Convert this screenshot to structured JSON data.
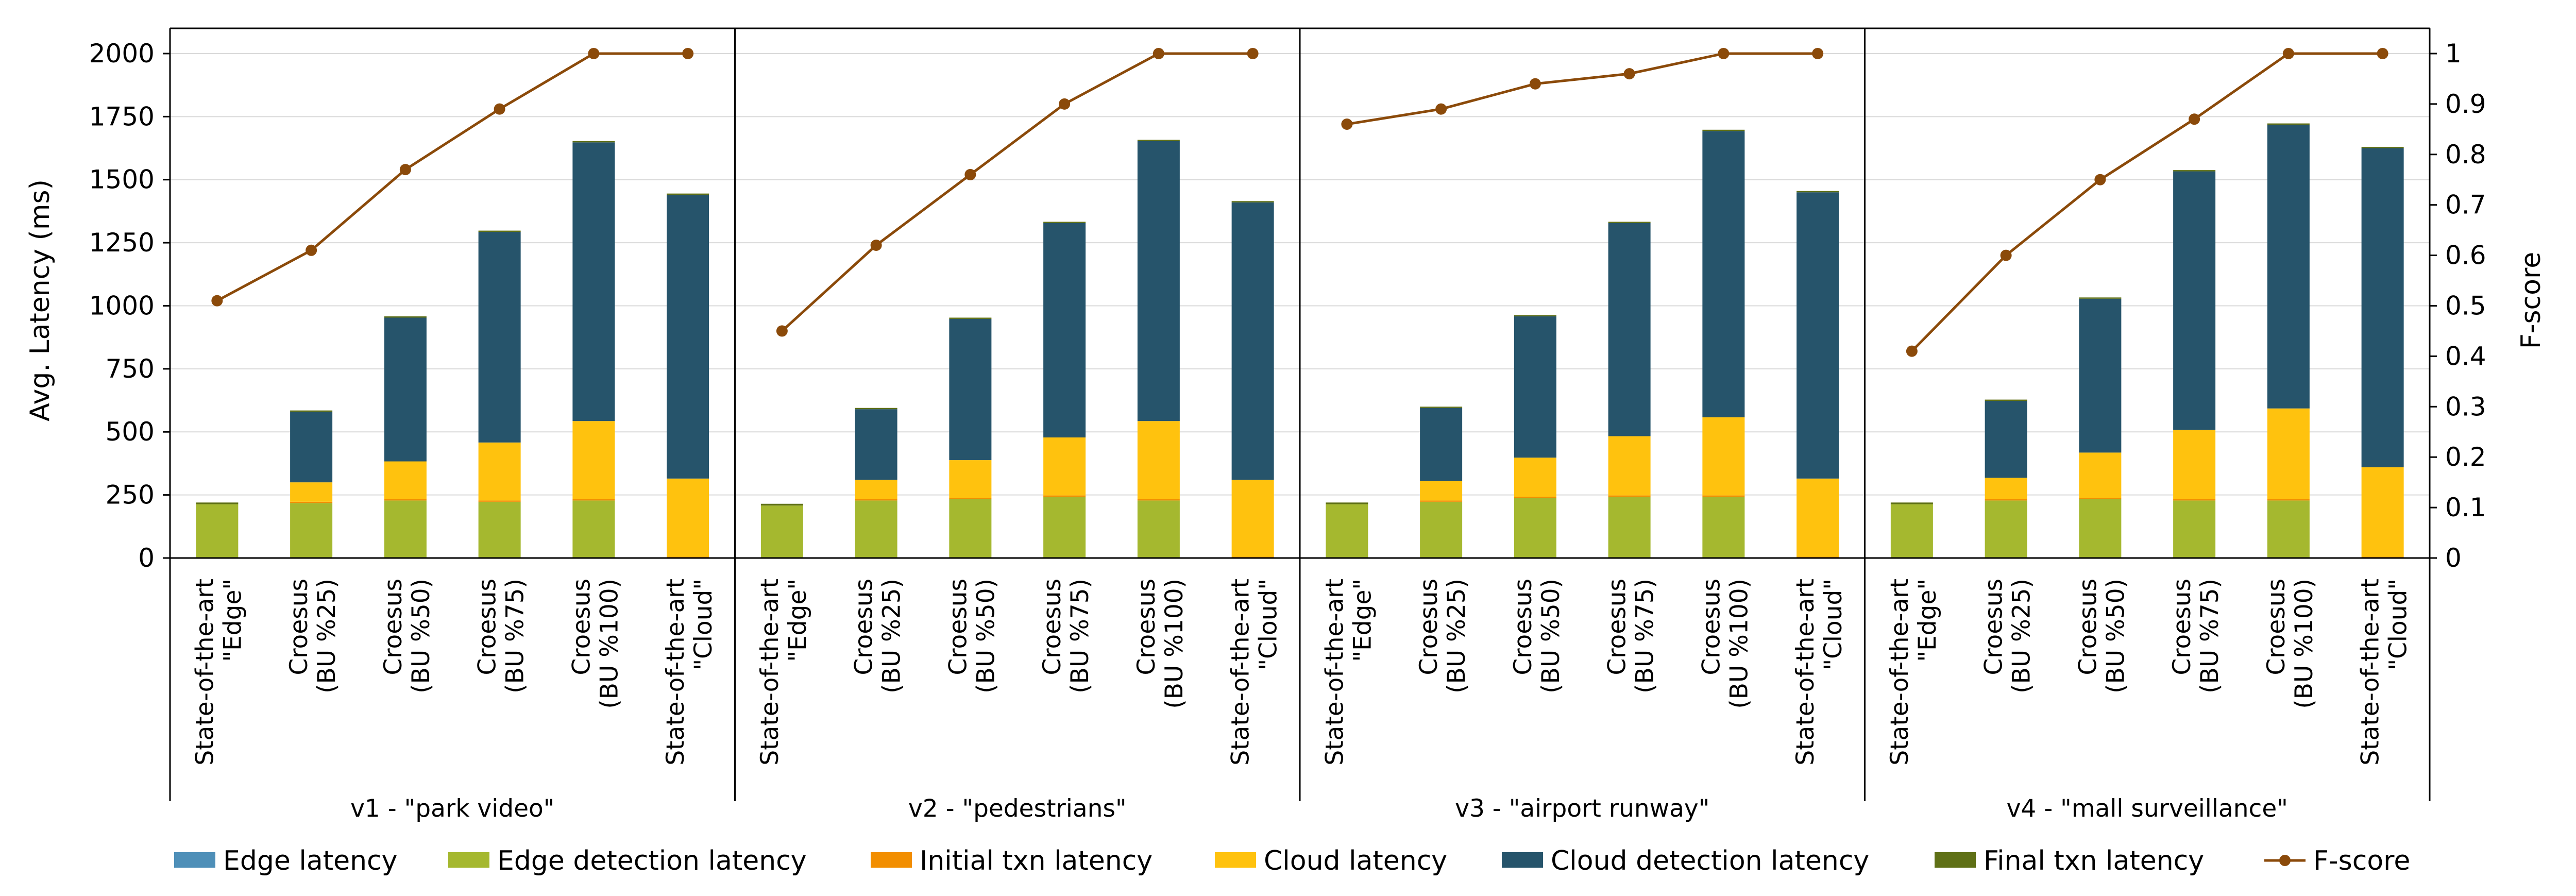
{
  "chart_data": {
    "type": "bar",
    "stacked": true,
    "secondary_line": "F-score",
    "ylabel": "Avg. Latency (ms)",
    "y2label": "F-score",
    "ylim": [
      0,
      2100
    ],
    "y2lim": [
      0,
      1.0
    ],
    "yticks": [
      "0",
      "250",
      "500",
      "750",
      "1000",
      "1250",
      "1500",
      "1750",
      "2000"
    ],
    "y2ticks": [
      "0",
      "0.1",
      "0.2",
      "0.3",
      "0.4",
      "0.5",
      "0.6",
      "0.7",
      "0.8",
      "0.9",
      "1"
    ],
    "legend_position": "bottom",
    "colors": {
      "Edge latency": "#4e8fb8",
      "Edge detection latency": "#a5b82f",
      "Initial txn latency": "#f28e00",
      "Cloud latency": "#ffc20e",
      "Cloud detection latency": "#26546b",
      "Final txn latency": "#5f7016",
      "F-score": "#8b4a0a"
    },
    "legend": [
      "Edge latency",
      "Edge detection latency",
      "Initial txn latency",
      "Cloud latency",
      "Cloud detection latency",
      "Final txn latency",
      "F-score"
    ],
    "groups": [
      {
        "name": "v1 - \"park video\"",
        "categories": [
          [
            "State-of-the-art",
            "\"Edge\""
          ],
          [
            "Croesus",
            "(BU %25)"
          ],
          [
            "Croesus",
            "(BU %50)"
          ],
          [
            "Croesus",
            "(BU %75)"
          ],
          [
            "Croesus",
            "(BU %100)"
          ],
          [
            "State-of-the-art",
            "\"Cloud\""
          ]
        ],
        "series": [
          {
            "name": "Edge latency",
            "values": [
              3,
              3,
              3,
              3,
              3,
              0
            ]
          },
          {
            "name": "Edge detection latency",
            "values": [
              210,
              215,
              225,
              220,
              225,
              0
            ]
          },
          {
            "name": "Initial txn latency",
            "values": [
              0,
              5,
              5,
              5,
              5,
              5
            ]
          },
          {
            "name": "Cloud latency",
            "values": [
              0,
              77,
              150,
              230,
              310,
              310
            ]
          },
          {
            "name": "Cloud detection latency",
            "values": [
              0,
              280,
              570,
              835,
              1105,
              1125
            ]
          },
          {
            "name": "Final txn latency",
            "values": [
              7,
              5,
              5,
              5,
              5,
              5
            ]
          }
        ],
        "fscore": [
          0.51,
          0.61,
          0.77,
          0.89,
          1.0,
          1.0
        ]
      },
      {
        "name": "v2 - \"pedestrians\"",
        "categories": [
          [
            "State-of-the-art",
            "\"Edge\""
          ],
          [
            "Croesus",
            "(BU %25)"
          ],
          [
            "Croesus",
            "(BU %50)"
          ],
          [
            "Croesus",
            "(BU %75)"
          ],
          [
            "Croesus",
            "(BU %100)"
          ],
          [
            "State-of-the-art",
            "\"Cloud\""
          ]
        ],
        "series": [
          {
            "name": "Edge latency",
            "values": [
              3,
              3,
              3,
              3,
              3,
              0
            ]
          },
          {
            "name": "Edge detection latency",
            "values": [
              205,
              225,
              230,
              240,
              225,
              0
            ]
          },
          {
            "name": "Initial txn latency",
            "values": [
              0,
              5,
              5,
              5,
              5,
              5
            ]
          },
          {
            "name": "Cloud latency",
            "values": [
              0,
              77,
              150,
              230,
              310,
              305
            ]
          },
          {
            "name": "Cloud detection latency",
            "values": [
              0,
              280,
              560,
              850,
              1110,
              1100
            ]
          },
          {
            "name": "Final txn latency",
            "values": [
              7,
              5,
              5,
              5,
              5,
              5
            ]
          }
        ],
        "fscore": [
          0.45,
          0.62,
          0.76,
          0.9,
          1.0,
          1.0
        ]
      },
      {
        "name": "v3 - \"airport runway\"",
        "categories": [
          [
            "State-of-the-art",
            "\"Edge\""
          ],
          [
            "Croesus",
            "(BU %25)"
          ],
          [
            "Croesus",
            "(BU %50)"
          ],
          [
            "Croesus",
            "(BU %75)"
          ],
          [
            "Croesus",
            "(BU %100)"
          ],
          [
            "State-of-the-art",
            "\"Cloud\""
          ]
        ],
        "series": [
          {
            "name": "Edge latency",
            "values": [
              3,
              3,
              3,
              3,
              3,
              0
            ]
          },
          {
            "name": "Edge detection latency",
            "values": [
              210,
              220,
              235,
              240,
              240,
              0
            ]
          },
          {
            "name": "Initial txn latency",
            "values": [
              0,
              5,
              5,
              5,
              5,
              5
            ]
          },
          {
            "name": "Cloud latency",
            "values": [
              0,
              77,
              155,
              235,
              310,
              310
            ]
          },
          {
            "name": "Cloud detection latency",
            "values": [
              0,
              290,
              560,
              845,
              1135,
              1135
            ]
          },
          {
            "name": "Final txn latency",
            "values": [
              7,
              5,
              5,
              5,
              5,
              5
            ]
          }
        ],
        "fscore": [
          0.86,
          0.89,
          0.94,
          0.96,
          1.0,
          1.0
        ]
      },
      {
        "name": "v4 - \"mall surveillance\"",
        "categories": [
          [
            "State-of-the-art",
            "\"Edge\""
          ],
          [
            "Croesus",
            "(BU %25)"
          ],
          [
            "Croesus",
            "(BU %50)"
          ],
          [
            "Croesus",
            "(BU %75)"
          ],
          [
            "Croesus",
            "(BU %100)"
          ],
          [
            "State-of-the-art",
            "\"Cloud\""
          ]
        ],
        "series": [
          {
            "name": "Edge latency",
            "values": [
              3,
              3,
              3,
              3,
              3,
              0
            ]
          },
          {
            "name": "Edge detection latency",
            "values": [
              210,
              225,
              230,
              225,
              225,
              0
            ]
          },
          {
            "name": "Initial txn latency",
            "values": [
              0,
              5,
              5,
              5,
              5,
              5
            ]
          },
          {
            "name": "Cloud latency",
            "values": [
              0,
              85,
              180,
              275,
              360,
              355
            ]
          },
          {
            "name": "Cloud detection latency",
            "values": [
              0,
              305,
              610,
              1025,
              1125,
              1265
            ]
          },
          {
            "name": "Final txn latency",
            "values": [
              7,
              5,
              5,
              5,
              5,
              5
            ]
          }
        ],
        "fscore": [
          0.41,
          0.6,
          0.75,
          0.87,
          1.0,
          1.0
        ]
      }
    ]
  }
}
